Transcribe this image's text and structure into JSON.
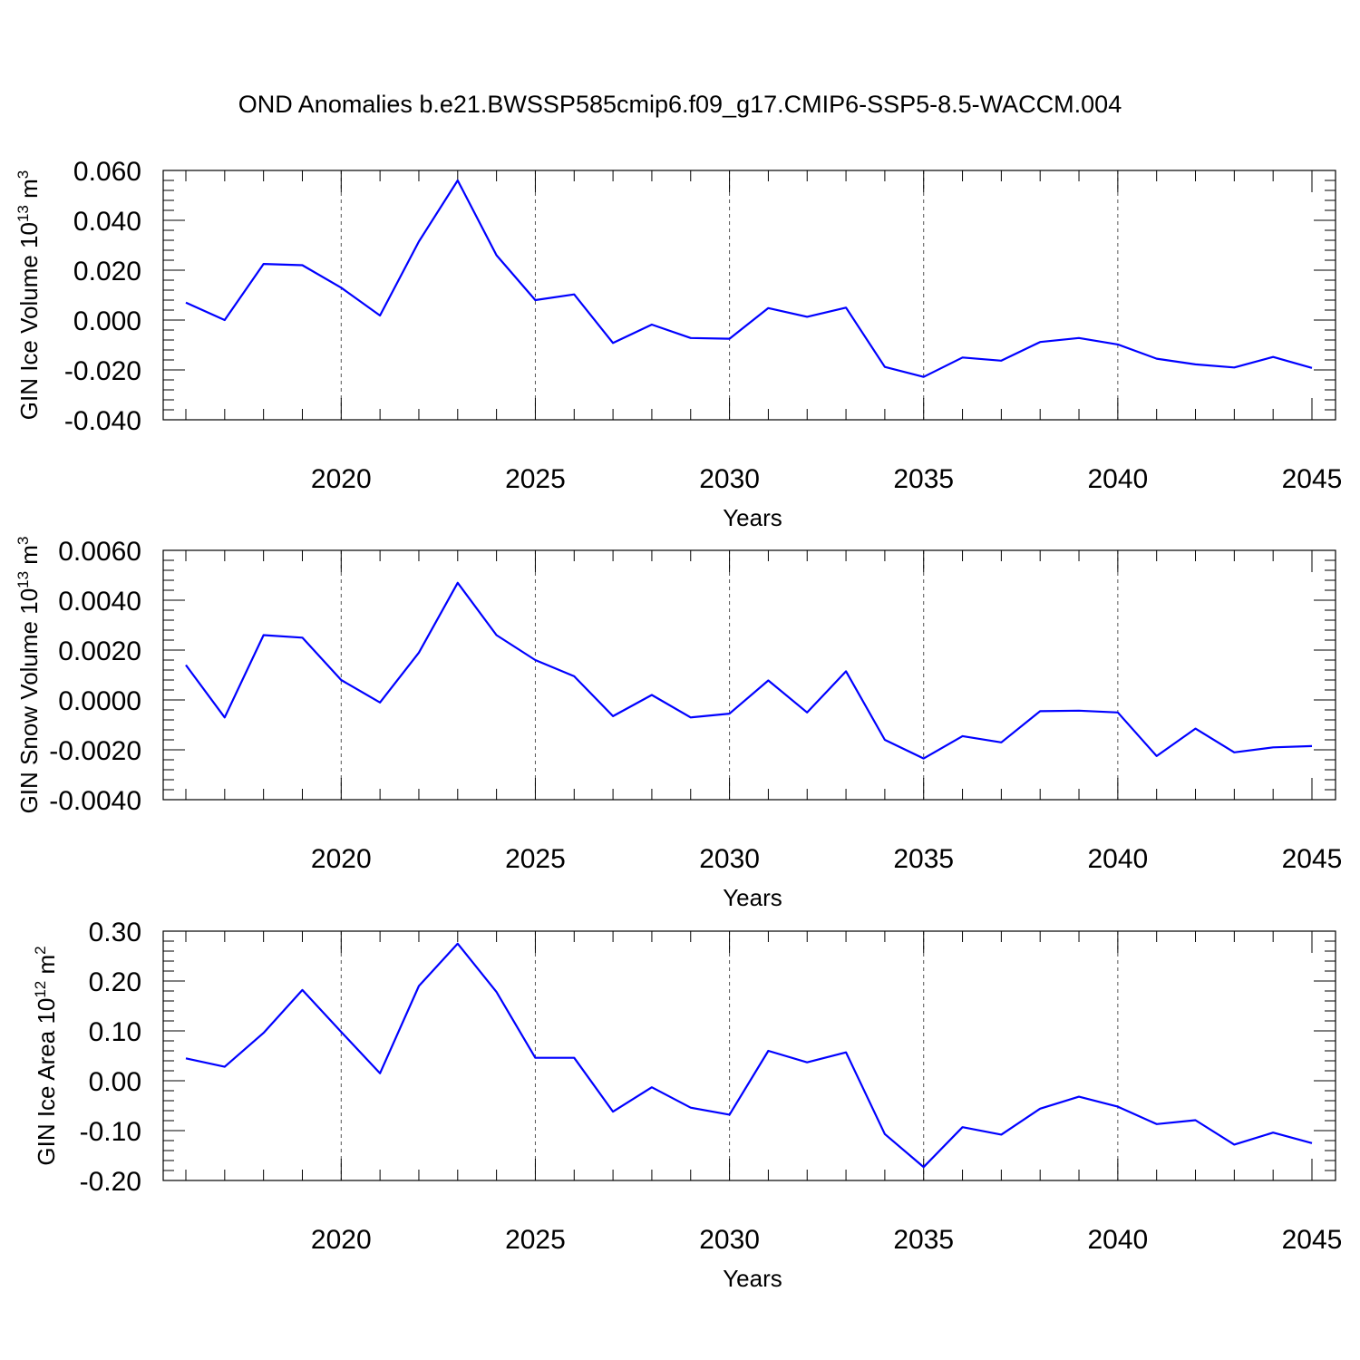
{
  "figure": {
    "title": "OND Anomalies b.e21.BWSSP585cmip6.f09_g17.CMIP6-SSP5-8.5-WACCM.004"
  },
  "chart_data": [
    {
      "type": "line",
      "xlabel": "Years",
      "ylabel": "GIN Ice Volume 10",
      "ylabel_sup": "13",
      "ylabel_unit": " m",
      "ylabel_unit_sup": "3",
      "xlim": [
        2016,
        2045
      ],
      "ylim": [
        -0.04,
        0.06
      ],
      "yticks": [
        0.06,
        0.04,
        0.02,
        0.0,
        -0.02,
        -0.04
      ],
      "ytick_labels": [
        "0.060",
        "0.040",
        "0.020",
        "0.000",
        "-0.020",
        "-0.040"
      ],
      "xticks": [
        2020,
        2025,
        2030,
        2035,
        2040,
        2045
      ],
      "xtick_labels": [
        "2020",
        "2025",
        "2030",
        "2035",
        "2040",
        "2045"
      ],
      "grid_x": [
        2020,
        2025,
        2030,
        2035,
        2040
      ],
      "color": "#0000ff",
      "x": [
        2016,
        2017,
        2018,
        2019,
        2020,
        2021,
        2022,
        2023,
        2024,
        2025,
        2026,
        2027,
        2028,
        2029,
        2030,
        2031,
        2032,
        2033,
        2034,
        2035,
        2036,
        2037,
        2038,
        2039,
        2040,
        2041,
        2042,
        2043,
        2044,
        2045
      ],
      "values": [
        0.007,
        0.0,
        0.0225,
        0.022,
        0.013,
        0.0018,
        0.0315,
        0.056,
        0.026,
        0.008,
        0.0103,
        -0.0092,
        -0.0018,
        -0.0072,
        -0.0075,
        0.0048,
        0.0013,
        0.005,
        -0.0188,
        -0.0228,
        -0.015,
        -0.0163,
        -0.0088,
        -0.0072,
        -0.0098,
        -0.0155,
        -0.0178,
        -0.019,
        -0.0148,
        -0.0192
      ]
    },
    {
      "type": "line",
      "xlabel": "Years",
      "ylabel": "GIN Snow Volume 10",
      "ylabel_sup": "13",
      "ylabel_unit": " m",
      "ylabel_unit_sup": "3",
      "xlim": [
        2016,
        2045
      ],
      "ylim": [
        -0.004,
        0.006
      ],
      "yticks": [
        0.006,
        0.004,
        0.002,
        0.0,
        -0.002,
        -0.004
      ],
      "ytick_labels": [
        "0.0060",
        "0.0040",
        "0.0020",
        "0.0000",
        "-0.0020",
        "-0.0040"
      ],
      "xticks": [
        2020,
        2025,
        2030,
        2035,
        2040,
        2045
      ],
      "xtick_labels": [
        "2020",
        "2025",
        "2030",
        "2035",
        "2040",
        "2045"
      ],
      "grid_x": [
        2020,
        2025,
        2030,
        2035,
        2040
      ],
      "color": "#0000ff",
      "x": [
        2016,
        2017,
        2018,
        2019,
        2020,
        2021,
        2022,
        2023,
        2024,
        2025,
        2026,
        2027,
        2028,
        2029,
        2030,
        2031,
        2032,
        2033,
        2034,
        2035,
        2036,
        2037,
        2038,
        2039,
        2040,
        2041,
        2042,
        2043,
        2044,
        2045
      ],
      "values": [
        0.0014,
        -0.0007,
        0.0026,
        0.0025,
        0.0008,
        -0.0001,
        0.0019,
        0.0047,
        0.0026,
        0.0016,
        0.00095,
        -0.00065,
        0.0002,
        -0.0007,
        -0.00055,
        0.00078,
        -0.0005,
        0.00115,
        -0.0016,
        -0.00235,
        -0.00145,
        -0.0017,
        -0.00045,
        -0.00043,
        -0.0005,
        -0.00225,
        -0.00115,
        -0.0021,
        -0.0019,
        -0.00185
      ]
    },
    {
      "type": "line",
      "xlabel": "Years",
      "ylabel": "GIN Ice Area 10",
      "ylabel_sup": "12",
      "ylabel_unit": " m",
      "ylabel_unit_sup": "2",
      "xlim": [
        2016,
        2045
      ],
      "ylim": [
        -0.2,
        0.3
      ],
      "yticks": [
        0.3,
        0.2,
        0.1,
        0.0,
        -0.1,
        -0.2
      ],
      "ytick_labels": [
        "0.30",
        "0.20",
        "0.10",
        "0.00",
        "-0.10",
        "-0.20"
      ],
      "xticks": [
        2020,
        2025,
        2030,
        2035,
        2040,
        2045
      ],
      "xtick_labels": [
        "2020",
        "2025",
        "2030",
        "2035",
        "2040",
        "2045"
      ],
      "grid_x": [
        2020,
        2025,
        2030,
        2035,
        2040
      ],
      "color": "#0000ff",
      "x": [
        2016,
        2017,
        2018,
        2019,
        2020,
        2021,
        2022,
        2023,
        2024,
        2025,
        2026,
        2027,
        2028,
        2029,
        2030,
        2031,
        2032,
        2033,
        2034,
        2035,
        2036,
        2037,
        2038,
        2039,
        2040,
        2041,
        2042,
        2043,
        2044,
        2045
      ],
      "values": [
        0.045,
        0.028,
        0.096,
        0.182,
        0.098,
        0.015,
        0.19,
        0.275,
        0.178,
        0.046,
        0.046,
        -0.062,
        -0.013,
        -0.054,
        -0.068,
        0.06,
        0.037,
        0.057,
        -0.107,
        -0.173,
        -0.093,
        -0.108,
        -0.056,
        -0.032,
        -0.052,
        -0.087,
        -0.079,
        -0.128,
        -0.104,
        -0.125
      ]
    }
  ]
}
